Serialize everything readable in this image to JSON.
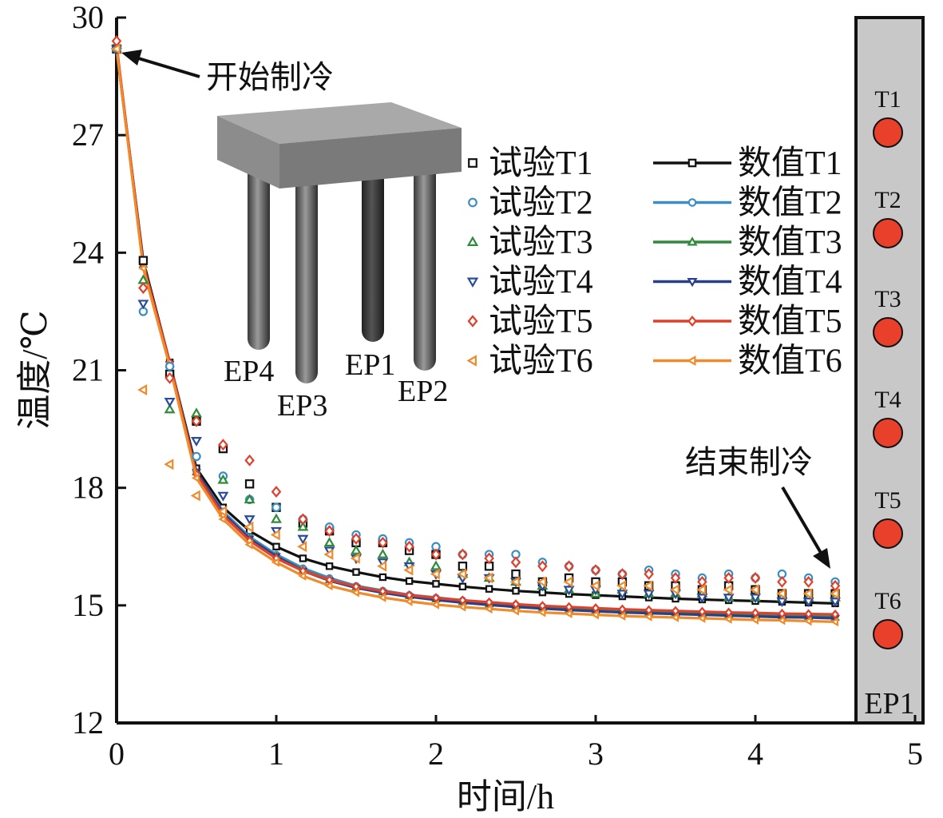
{
  "chart_data": {
    "type": "line",
    "xlabel": "时间/h",
    "ylabel": "温度/℃",
    "xlim": [
      0,
      5
    ],
    "ylim": [
      12,
      30
    ],
    "xticks": [
      "0",
      "1",
      "2",
      "3",
      "4",
      "5"
    ],
    "yticks": [
      "12",
      "15",
      "18",
      "21",
      "24",
      "27",
      "30"
    ],
    "x": [
      0,
      0.167,
      0.333,
      0.5,
      0.667,
      0.833,
      1.0,
      1.167,
      1.333,
      1.5,
      1.667,
      1.833,
      2.0,
      2.167,
      2.333,
      2.5,
      2.667,
      2.833,
      3.0,
      3.167,
      3.333,
      3.5,
      3.667,
      3.833,
      4.0,
      4.167,
      4.333,
      4.5
    ],
    "experimental": [
      {
        "name": "试验T1",
        "color": "#111111",
        "marker": "square",
        "values": [
          29.2,
          23.8,
          20.9,
          19.7,
          19.0,
          18.1,
          17.5,
          17.1,
          16.9,
          16.6,
          16.6,
          16.4,
          16.3,
          16.0,
          16.0,
          15.8,
          15.6,
          15.7,
          15.6,
          15.6,
          15.5,
          15.5,
          15.4,
          15.5,
          15.4,
          15.3,
          15.3,
          15.3
        ]
      },
      {
        "name": "试验T2",
        "color": "#3b8ec2",
        "marker": "circle",
        "values": [
          29.2,
          22.5,
          21.1,
          18.8,
          18.3,
          17.7,
          17.5,
          17.2,
          17.0,
          16.8,
          16.7,
          16.6,
          16.5,
          16.3,
          16.3,
          16.3,
          16.1,
          16.0,
          15.9,
          15.8,
          15.9,
          15.8,
          15.7,
          15.8,
          15.7,
          15.8,
          15.7,
          15.6
        ]
      },
      {
        "name": "试验T3",
        "color": "#2e8b3a",
        "marker": "triangle-up",
        "values": [
          29.3,
          23.3,
          20.0,
          19.9,
          18.2,
          17.7,
          17.2,
          17.0,
          16.6,
          16.4,
          16.3,
          16.1,
          16.0,
          15.8,
          15.7,
          15.6,
          15.5,
          15.4,
          15.3,
          15.4,
          15.3,
          15.3,
          15.3,
          15.2,
          15.2,
          15.2,
          15.2,
          15.2
        ]
      },
      {
        "name": "试验T4",
        "color": "#2a4a9a",
        "marker": "triangle-down",
        "values": [
          29.2,
          22.7,
          20.2,
          19.2,
          17.8,
          17.2,
          16.9,
          16.7,
          16.4,
          16.2,
          16.1,
          16.0,
          15.8,
          15.7,
          15.7,
          15.6,
          15.5,
          15.4,
          15.4,
          15.3,
          15.3,
          15.3,
          15.2,
          15.2,
          15.2,
          15.1,
          15.1,
          15.1
        ]
      },
      {
        "name": "试验T5",
        "color": "#e0402a",
        "marker": "diamond",
        "values": [
          29.4,
          23.1,
          20.8,
          19.7,
          19.1,
          18.7,
          17.9,
          17.2,
          16.9,
          16.7,
          16.6,
          16.5,
          16.3,
          16.3,
          16.2,
          16.1,
          16.0,
          16.0,
          15.9,
          15.8,
          15.8,
          15.7,
          15.6,
          15.7,
          15.7,
          15.6,
          15.6,
          15.5
        ]
      },
      {
        "name": "试验T6",
        "color": "#f08a2a",
        "marker": "triangle-left",
        "values": [
          29.2,
          20.5,
          18.6,
          17.8,
          17.4,
          17.0,
          16.8,
          16.5,
          16.3,
          16.2,
          16.0,
          15.9,
          15.8,
          15.8,
          15.7,
          15.6,
          15.6,
          15.6,
          15.5,
          15.5,
          15.5,
          15.4,
          15.4,
          15.4,
          15.4,
          15.3,
          15.3,
          15.3
        ]
      }
    ],
    "numerical": [
      {
        "name": "数值T1",
        "color": "#111111",
        "marker": "square",
        "values": [
          29.2,
          23.8,
          21.2,
          18.5,
          17.5,
          16.9,
          16.5,
          16.2,
          16.0,
          15.85,
          15.72,
          15.62,
          15.55,
          15.48,
          15.42,
          15.37,
          15.33,
          15.29,
          15.26,
          15.23,
          15.2,
          15.17,
          15.15,
          15.13,
          15.11,
          15.09,
          15.07,
          15.05
        ]
      },
      {
        "name": "数值T2",
        "color": "#3b8ec2",
        "marker": "circle",
        "values": [
          29.2,
          23.7,
          21.15,
          18.4,
          17.4,
          16.75,
          16.3,
          15.95,
          15.7,
          15.5,
          15.38,
          15.27,
          15.2,
          15.13,
          15.07,
          15.02,
          14.98,
          14.94,
          14.91,
          14.88,
          14.86,
          14.84,
          14.82,
          14.8,
          14.78,
          14.76,
          14.75,
          14.73
        ]
      },
      {
        "name": "数值T3",
        "color": "#2e8b3a",
        "marker": "triangle-up",
        "values": [
          29.2,
          23.7,
          21.15,
          18.4,
          17.35,
          16.7,
          16.25,
          15.9,
          15.65,
          15.47,
          15.34,
          15.24,
          15.16,
          15.09,
          15.03,
          14.98,
          14.94,
          14.9,
          14.87,
          14.84,
          14.82,
          14.8,
          14.78,
          14.76,
          14.74,
          14.72,
          14.71,
          14.69
        ]
      },
      {
        "name": "数值T4",
        "color": "#2a3f8a",
        "marker": "triangle-down",
        "values": [
          29.2,
          23.7,
          21.15,
          18.4,
          17.35,
          16.7,
          16.25,
          15.88,
          15.63,
          15.45,
          15.32,
          15.22,
          15.14,
          15.07,
          15.01,
          14.96,
          14.92,
          14.88,
          14.85,
          14.82,
          14.8,
          14.78,
          14.76,
          14.74,
          14.72,
          14.7,
          14.69,
          14.67
        ]
      },
      {
        "name": "数值T5",
        "color": "#e0402a",
        "marker": "diamond",
        "values": [
          29.3,
          23.7,
          21.2,
          18.35,
          17.3,
          16.65,
          16.2,
          15.88,
          15.65,
          15.48,
          15.36,
          15.26,
          15.19,
          15.13,
          15.08,
          15.03,
          14.99,
          14.96,
          14.93,
          14.9,
          14.88,
          14.86,
          14.84,
          14.82,
          14.81,
          14.79,
          14.78,
          14.77
        ]
      },
      {
        "name": "数值T6",
        "color": "#f08a2a",
        "marker": "triangle-left",
        "values": [
          29.2,
          23.6,
          21.1,
          18.25,
          17.2,
          16.55,
          16.1,
          15.75,
          15.5,
          15.33,
          15.2,
          15.1,
          15.02,
          14.96,
          14.91,
          14.86,
          14.82,
          14.79,
          14.76,
          14.73,
          14.71,
          14.69,
          14.67,
          14.65,
          14.63,
          14.62,
          14.6,
          14.58
        ]
      }
    ],
    "annotations": {
      "start": "开始制冷",
      "end": "结束制冷"
    },
    "inset": {
      "piles": [
        "EP4",
        "EP3",
        "EP1",
        "EP2"
      ]
    },
    "side_panel": {
      "label": "EP1",
      "sensors": [
        "T1",
        "T2",
        "T3",
        "T4",
        "T5",
        "T6"
      ],
      "sensor_color": "#e8402a",
      "panel_color": "#c8c8c8"
    },
    "grid": false,
    "legend_position": "center"
  }
}
